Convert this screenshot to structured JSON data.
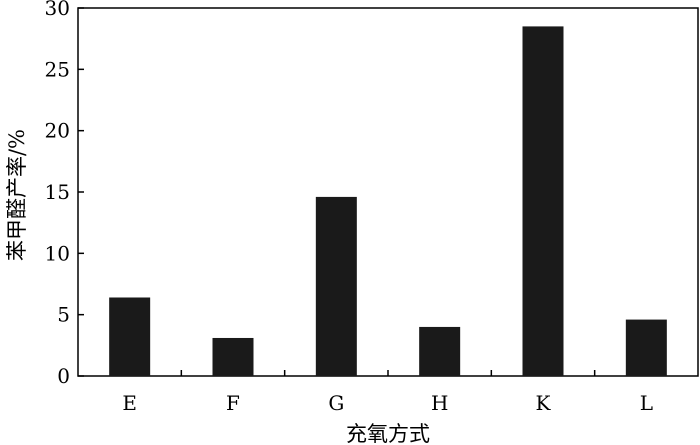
{
  "chart_data": {
    "type": "bar",
    "title": "",
    "xlabel": "充氧方式",
    "ylabel": "苯甲醛产率/%",
    "categories": [
      "E",
      "F",
      "G",
      "H",
      "K",
      "L"
    ],
    "values": [
      6.4,
      3.1,
      14.6,
      4.0,
      28.5,
      4.6
    ],
    "ylim": [
      0,
      30
    ],
    "yticks": [
      0,
      5,
      10,
      15,
      20,
      25,
      30
    ],
    "bar_color": "#1a1a1a",
    "grid": false,
    "legend": "none"
  }
}
